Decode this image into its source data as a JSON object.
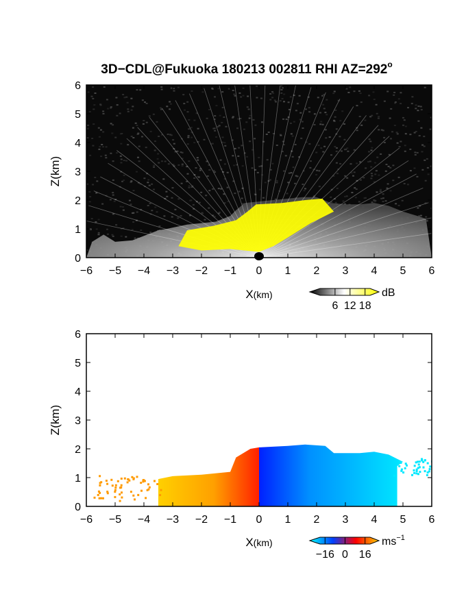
{
  "title": "3D−CDL@Fukuoka 180213 002811 RHI AZ=292",
  "title_superscript": "o",
  "chart_data": [
    {
      "type": "heatmap",
      "name": "Signal intensity",
      "xlabel_main": "X",
      "xlabel_unit": "(km)",
      "ylabel": "Z(km)",
      "xlim": [
        -6,
        6
      ],
      "ylim": [
        0,
        6
      ],
      "x_ticks": [
        "−6",
        "−5",
        "−4",
        "−3",
        "−2",
        "−1",
        "0",
        "1",
        "2",
        "3",
        "4",
        "5",
        "6"
      ],
      "y_ticks": [
        "0",
        "1",
        "2",
        "3",
        "4",
        "5",
        "6"
      ],
      "background_color": "#0a0a0a",
      "colorbar": {
        "unit": "dB",
        "ticks": [
          "6",
          "12",
          "18"
        ],
        "tick_values": [
          6,
          12,
          18
        ],
        "range": [
          0,
          20
        ],
        "colors": [
          "#000000",
          "#ffffff",
          "#ffff00"
        ]
      },
      "echo_top_km": [
        [
          -6.0,
          0.0
        ],
        [
          -5.8,
          0.55
        ],
        [
          -5.4,
          0.8
        ],
        [
          -5.0,
          0.55
        ],
        [
          -4.4,
          0.6
        ],
        [
          -3.5,
          0.95
        ],
        [
          -3.2,
          1.0
        ],
        [
          -2.5,
          1.15
        ],
        [
          -2.0,
          1.2
        ],
        [
          -1.5,
          1.25
        ],
        [
          -1.0,
          1.45
        ],
        [
          -0.8,
          1.65
        ],
        [
          -0.5,
          1.9
        ],
        [
          0.0,
          1.95
        ],
        [
          0.5,
          2.0
        ],
        [
          1.0,
          2.05
        ],
        [
          1.5,
          2.1
        ],
        [
          2.0,
          2.1
        ],
        [
          2.5,
          1.9
        ],
        [
          3.0,
          1.85
        ],
        [
          3.5,
          1.85
        ],
        [
          4.0,
          1.9
        ],
        [
          4.5,
          1.8
        ],
        [
          5.0,
          1.6
        ],
        [
          5.5,
          1.45
        ],
        [
          5.8,
          1.35
        ],
        [
          6.0,
          0.0
        ]
      ],
      "high_intensity_region_km": [
        [
          -2.8,
          0.4
        ],
        [
          -2.5,
          0.95
        ],
        [
          -1.6,
          1.1
        ],
        [
          -0.8,
          1.3
        ],
        [
          -0.4,
          1.6
        ],
        [
          -0.1,
          1.85
        ],
        [
          0.8,
          1.9
        ],
        [
          1.6,
          2.0
        ],
        [
          2.2,
          2.05
        ],
        [
          2.6,
          1.6
        ],
        [
          1.8,
          1.2
        ],
        [
          1.0,
          0.7
        ],
        [
          0.5,
          0.4
        ],
        [
          0.0,
          0.2
        ],
        [
          -1.0,
          0.3
        ],
        [
          -2.0,
          0.25
        ]
      ]
    },
    {
      "type": "heatmap",
      "name": "Doppler velocity",
      "xlabel_main": "X",
      "xlabel_unit": "(km)",
      "ylabel": "Z(km)",
      "xlim": [
        -6,
        6
      ],
      "ylim": [
        0,
        6
      ],
      "x_ticks": [
        "−6",
        "−5",
        "−4",
        "−3",
        "−2",
        "−1",
        "0",
        "1",
        "2",
        "3",
        "4",
        "5",
        "6"
      ],
      "y_ticks": [
        "0",
        "1",
        "2",
        "3",
        "4",
        "5",
        "6"
      ],
      "background_color": "#ffffff",
      "colorbar": {
        "unit": "ms",
        "unit_exponent": "−1",
        "ticks": [
          "−16",
          "0",
          "16"
        ],
        "tick_values": [
          -16,
          0,
          16
        ],
        "range": [
          -20,
          20
        ],
        "colors": [
          "#00ffff",
          "#0040ff",
          "#ff0000",
          "#ffd000"
        ]
      },
      "echo_top_km": [
        [
          -3.5,
          0.95
        ],
        [
          -3.0,
          1.05
        ],
        [
          -2.0,
          1.1
        ],
        [
          -1.0,
          1.2
        ],
        [
          -0.8,
          1.7
        ],
        [
          -0.3,
          2.0
        ],
        [
          0.0,
          2.05
        ],
        [
          1.0,
          2.1
        ],
        [
          1.6,
          2.15
        ],
        [
          2.3,
          2.1
        ],
        [
          2.6,
          1.85
        ],
        [
          3.5,
          1.85
        ],
        [
          4.0,
          1.9
        ],
        [
          4.5,
          1.8
        ],
        [
          5.0,
          1.55
        ],
        [
          4.8,
          1.4
        ]
      ],
      "approaching_velocity_ms": -8,
      "receding_velocity_ms": 12
    }
  ]
}
